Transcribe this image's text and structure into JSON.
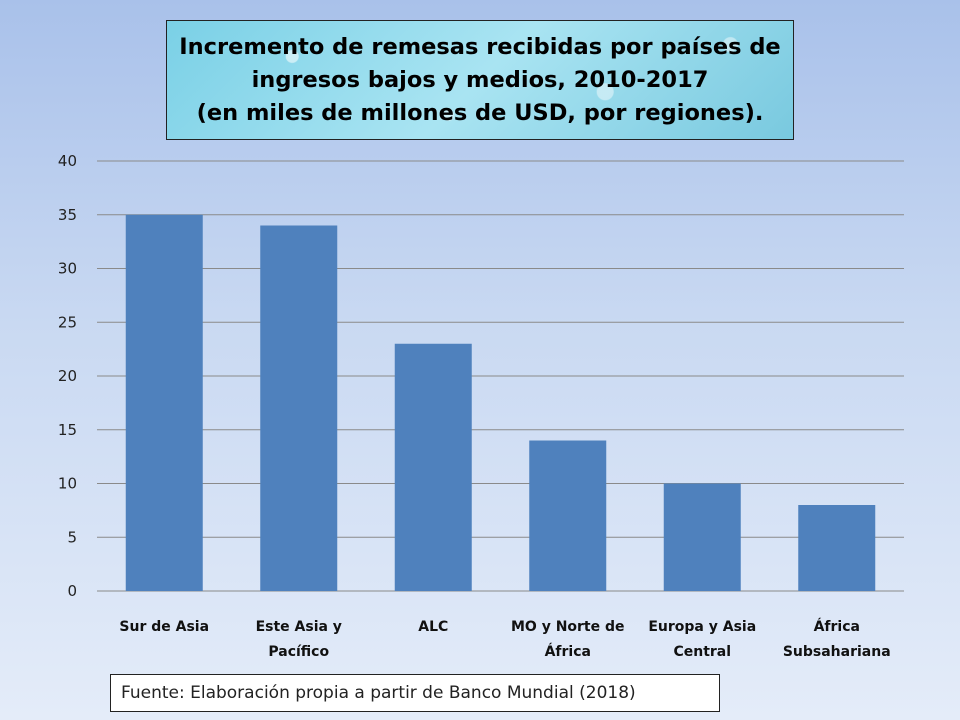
{
  "title_lines": [
    "Incremento de remesas recibidas por países de",
    "ingresos bajos y medios, 2010-2017",
    "(en miles de millones de USD, por regiones)."
  ],
  "source": "Fuente: Elaboración propia a partir de Banco Mundial (2018)",
  "chart_data": {
    "type": "bar",
    "categories": [
      [
        "Sur de Asia"
      ],
      [
        "Este Asia y",
        "Pacífico"
      ],
      [
        "ALC"
      ],
      [
        "MO y Norte de",
        "África"
      ],
      [
        "Europa y Asia",
        "Central"
      ],
      [
        "África",
        "Subsahariana"
      ]
    ],
    "values": [
      35,
      34,
      23,
      14,
      10,
      8
    ],
    "ylim": [
      0,
      40
    ],
    "yticks": [
      0,
      5,
      10,
      15,
      20,
      25,
      30,
      35,
      40
    ],
    "grid": true,
    "bar_color": "#4f81bd",
    "grid_color": "#8a8a8a"
  }
}
